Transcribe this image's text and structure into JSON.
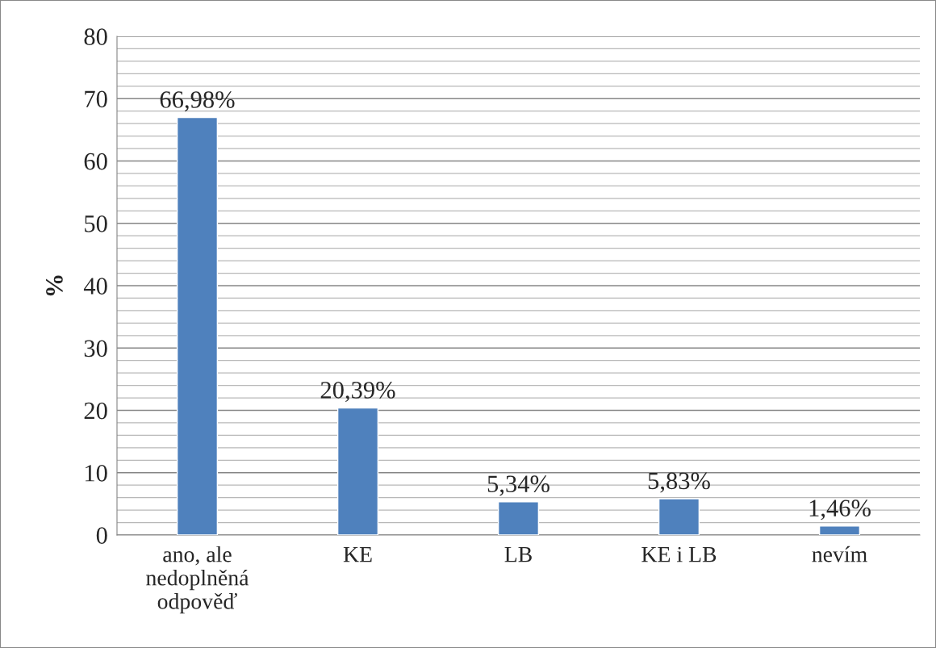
{
  "chart_data": {
    "type": "bar",
    "ylabel": "%",
    "categories": [
      "ano, ale\nnedoplněná\nodpověď",
      "KE",
      "LB",
      "KE i LB",
      "nevím"
    ],
    "values": [
      66.98,
      20.39,
      5.34,
      5.83,
      1.46
    ],
    "value_labels": [
      "66,98%",
      "20,39%",
      "5,34%",
      "5,83%",
      "1,46%"
    ],
    "color": "#4f81bd",
    "ylim": [
      0,
      80
    ],
    "yticks": [
      0,
      {
        "value": 2,
        "label": null
      },
      {
        "value": 4,
        "label": null
      },
      {
        "value": 6,
        "label": null
      },
      {
        "value": 8,
        "label": null
      },
      10,
      {
        "value": 12,
        "label": null
      },
      {
        "value": 14,
        "label": null
      },
      {
        "value": 16,
        "label": null
      },
      {
        "value": 18,
        "label": null
      },
      20,
      {
        "value": 22,
        "label": null
      },
      {
        "value": 24,
        "label": null
      },
      {
        "value": 26,
        "label": null
      },
      {
        "value": 28,
        "label": null
      },
      30,
      {
        "value": 32,
        "label": null
      },
      {
        "value": 34,
        "label": null
      },
      {
        "value": 36,
        "label": null
      },
      {
        "value": 38,
        "label": null
      },
      40,
      {
        "value": 42,
        "label": null
      },
      {
        "value": 44,
        "label": null
      },
      {
        "value": 46,
        "label": null
      },
      {
        "value": 48,
        "label": null
      },
      50,
      {
        "value": 52,
        "label": null
      },
      {
        "value": 54,
        "label": null
      },
      {
        "value": 56,
        "label": null
      },
      {
        "value": 58,
        "label": null
      },
      60,
      {
        "value": 62,
        "label": null
      },
      {
        "value": 64,
        "label": null
      },
      {
        "value": 66,
        "label": null
      },
      {
        "value": 68,
        "label": null
      },
      70,
      {
        "value": 72,
        "label": null
      },
      {
        "value": 74,
        "label": null
      },
      {
        "value": 76,
        "label": null
      },
      {
        "value": 78,
        "label": null
      },
      80
    ],
    "grid": "y",
    "legend": false
  }
}
